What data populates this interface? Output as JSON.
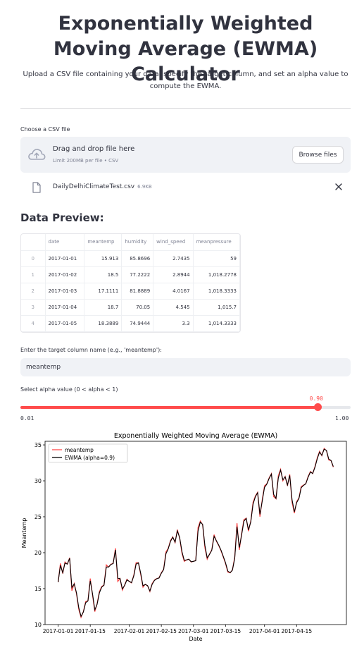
{
  "header": {
    "title": "Exponentially Weighted Moving Average (EWMA) Calculator",
    "subtitle": "Upload a CSV file containing your data, specify the target column, and set an alpha value to compute the EWMA."
  },
  "uploader": {
    "label": "Choose a CSV file",
    "drop_text": "Drag and drop file here",
    "limit_text": "Limit 200MB per file • CSV",
    "browse_label": "Browse files",
    "file_name": "DailyDelhiClimateTest.csv",
    "file_size": "6.9KB",
    "icons": {
      "upload": "cloud-upload-icon",
      "file": "file-icon",
      "remove": "close-icon"
    }
  },
  "preview": {
    "heading": "Data Preview:",
    "columns": [
      "",
      "date",
      "meantemp",
      "humidity",
      "wind_speed",
      "meanpressure"
    ],
    "rows": [
      [
        "0",
        "2017-01-01",
        "15.913",
        "85.8696",
        "2.7435",
        "59"
      ],
      [
        "1",
        "2017-01-02",
        "18.5",
        "77.2222",
        "2.8944",
        "1,018.2778"
      ],
      [
        "2",
        "2017-01-03",
        "17.1111",
        "81.8889",
        "4.0167",
        "1,018.3333"
      ],
      [
        "3",
        "2017-01-04",
        "18.7",
        "70.05",
        "4.545",
        "1,015.7"
      ],
      [
        "4",
        "2017-01-05",
        "18.3889",
        "74.9444",
        "3.3",
        "1,014.3333"
      ]
    ]
  },
  "target": {
    "label": "Enter the target column name (e.g., 'meantemp'):",
    "value": "meantemp"
  },
  "alpha": {
    "label": "Select alpha value (0 < alpha < 1)",
    "value": 0.9,
    "value_text": "0.90",
    "min": 0.01,
    "max": 1.0,
    "min_text": "0.01",
    "max_text": "1.00",
    "accent": "#ff4b4b"
  },
  "chart_data": {
    "type": "line",
    "title": "Exponentially Weighted Moving Average (EWMA)",
    "xlabel": "Date",
    "ylabel": "Meantemp",
    "x_start": "2017-01-01",
    "x_ticks": [
      "2017-01-01",
      "2017-01-15",
      "2017-02-01",
      "2017-02-15",
      "2017-03-01",
      "2017-03-15",
      "2017-04-01",
      "2017-04-15"
    ],
    "ylim": [
      10,
      35.5
    ],
    "y_ticks": [
      10,
      15,
      20,
      25,
      30,
      35
    ],
    "legend_position": "top-left",
    "series": [
      {
        "name": "meantemp",
        "color": "#ff4b4b",
        "values": [
          15.9,
          18.5,
          17.1,
          18.7,
          18.4,
          19.3,
          14.7,
          15.7,
          14.3,
          12.1,
          11.0,
          11.8,
          13.2,
          13.3,
          16.4,
          14.1,
          11.8,
          12.9,
          14.6,
          15.3,
          15.5,
          18.3,
          18.0,
          18.4,
          18.5,
          20.6,
          16.0,
          16.4,
          14.8,
          15.5,
          16.3,
          16.0,
          15.8,
          16.9,
          18.6,
          18.6,
          17.0,
          15.2,
          15.6,
          15.4,
          14.6,
          15.7,
          16.2,
          16.4,
          16.5,
          17.2,
          17.7,
          20.1,
          20.6,
          21.7,
          22.2,
          21.4,
          23.2,
          22.0,
          19.9,
          18.8,
          19.0,
          19.1,
          18.7,
          18.8,
          18.9,
          23.5,
          24.4,
          23.9,
          20.7,
          19.1,
          19.8,
          20.4,
          22.5,
          21.6,
          21.0,
          20.3,
          19.4,
          18.5,
          17.3,
          17.2,
          17.6,
          19.4,
          24.1,
          20.4,
          22.6,
          24.6,
          24.8,
          23.0,
          24.4,
          27.0,
          27.9,
          28.4,
          25.0,
          27.4,
          29.3,
          29.6,
          30.4,
          31.0,
          27.8,
          27.5,
          30.7,
          31.6,
          30.0,
          30.6,
          29.3,
          30.9,
          27.0,
          25.5,
          27.1,
          27.6,
          29.2,
          29.4,
          29.6,
          30.6,
          31.3,
          31.0,
          32.0,
          33.2,
          34.1,
          33.5,
          34.5,
          34.2,
          32.9,
          32.8,
          31.9
        ]
      },
      {
        "name": "EWMA (alpha=0.9)",
        "color": "#000000"
      }
    ]
  }
}
